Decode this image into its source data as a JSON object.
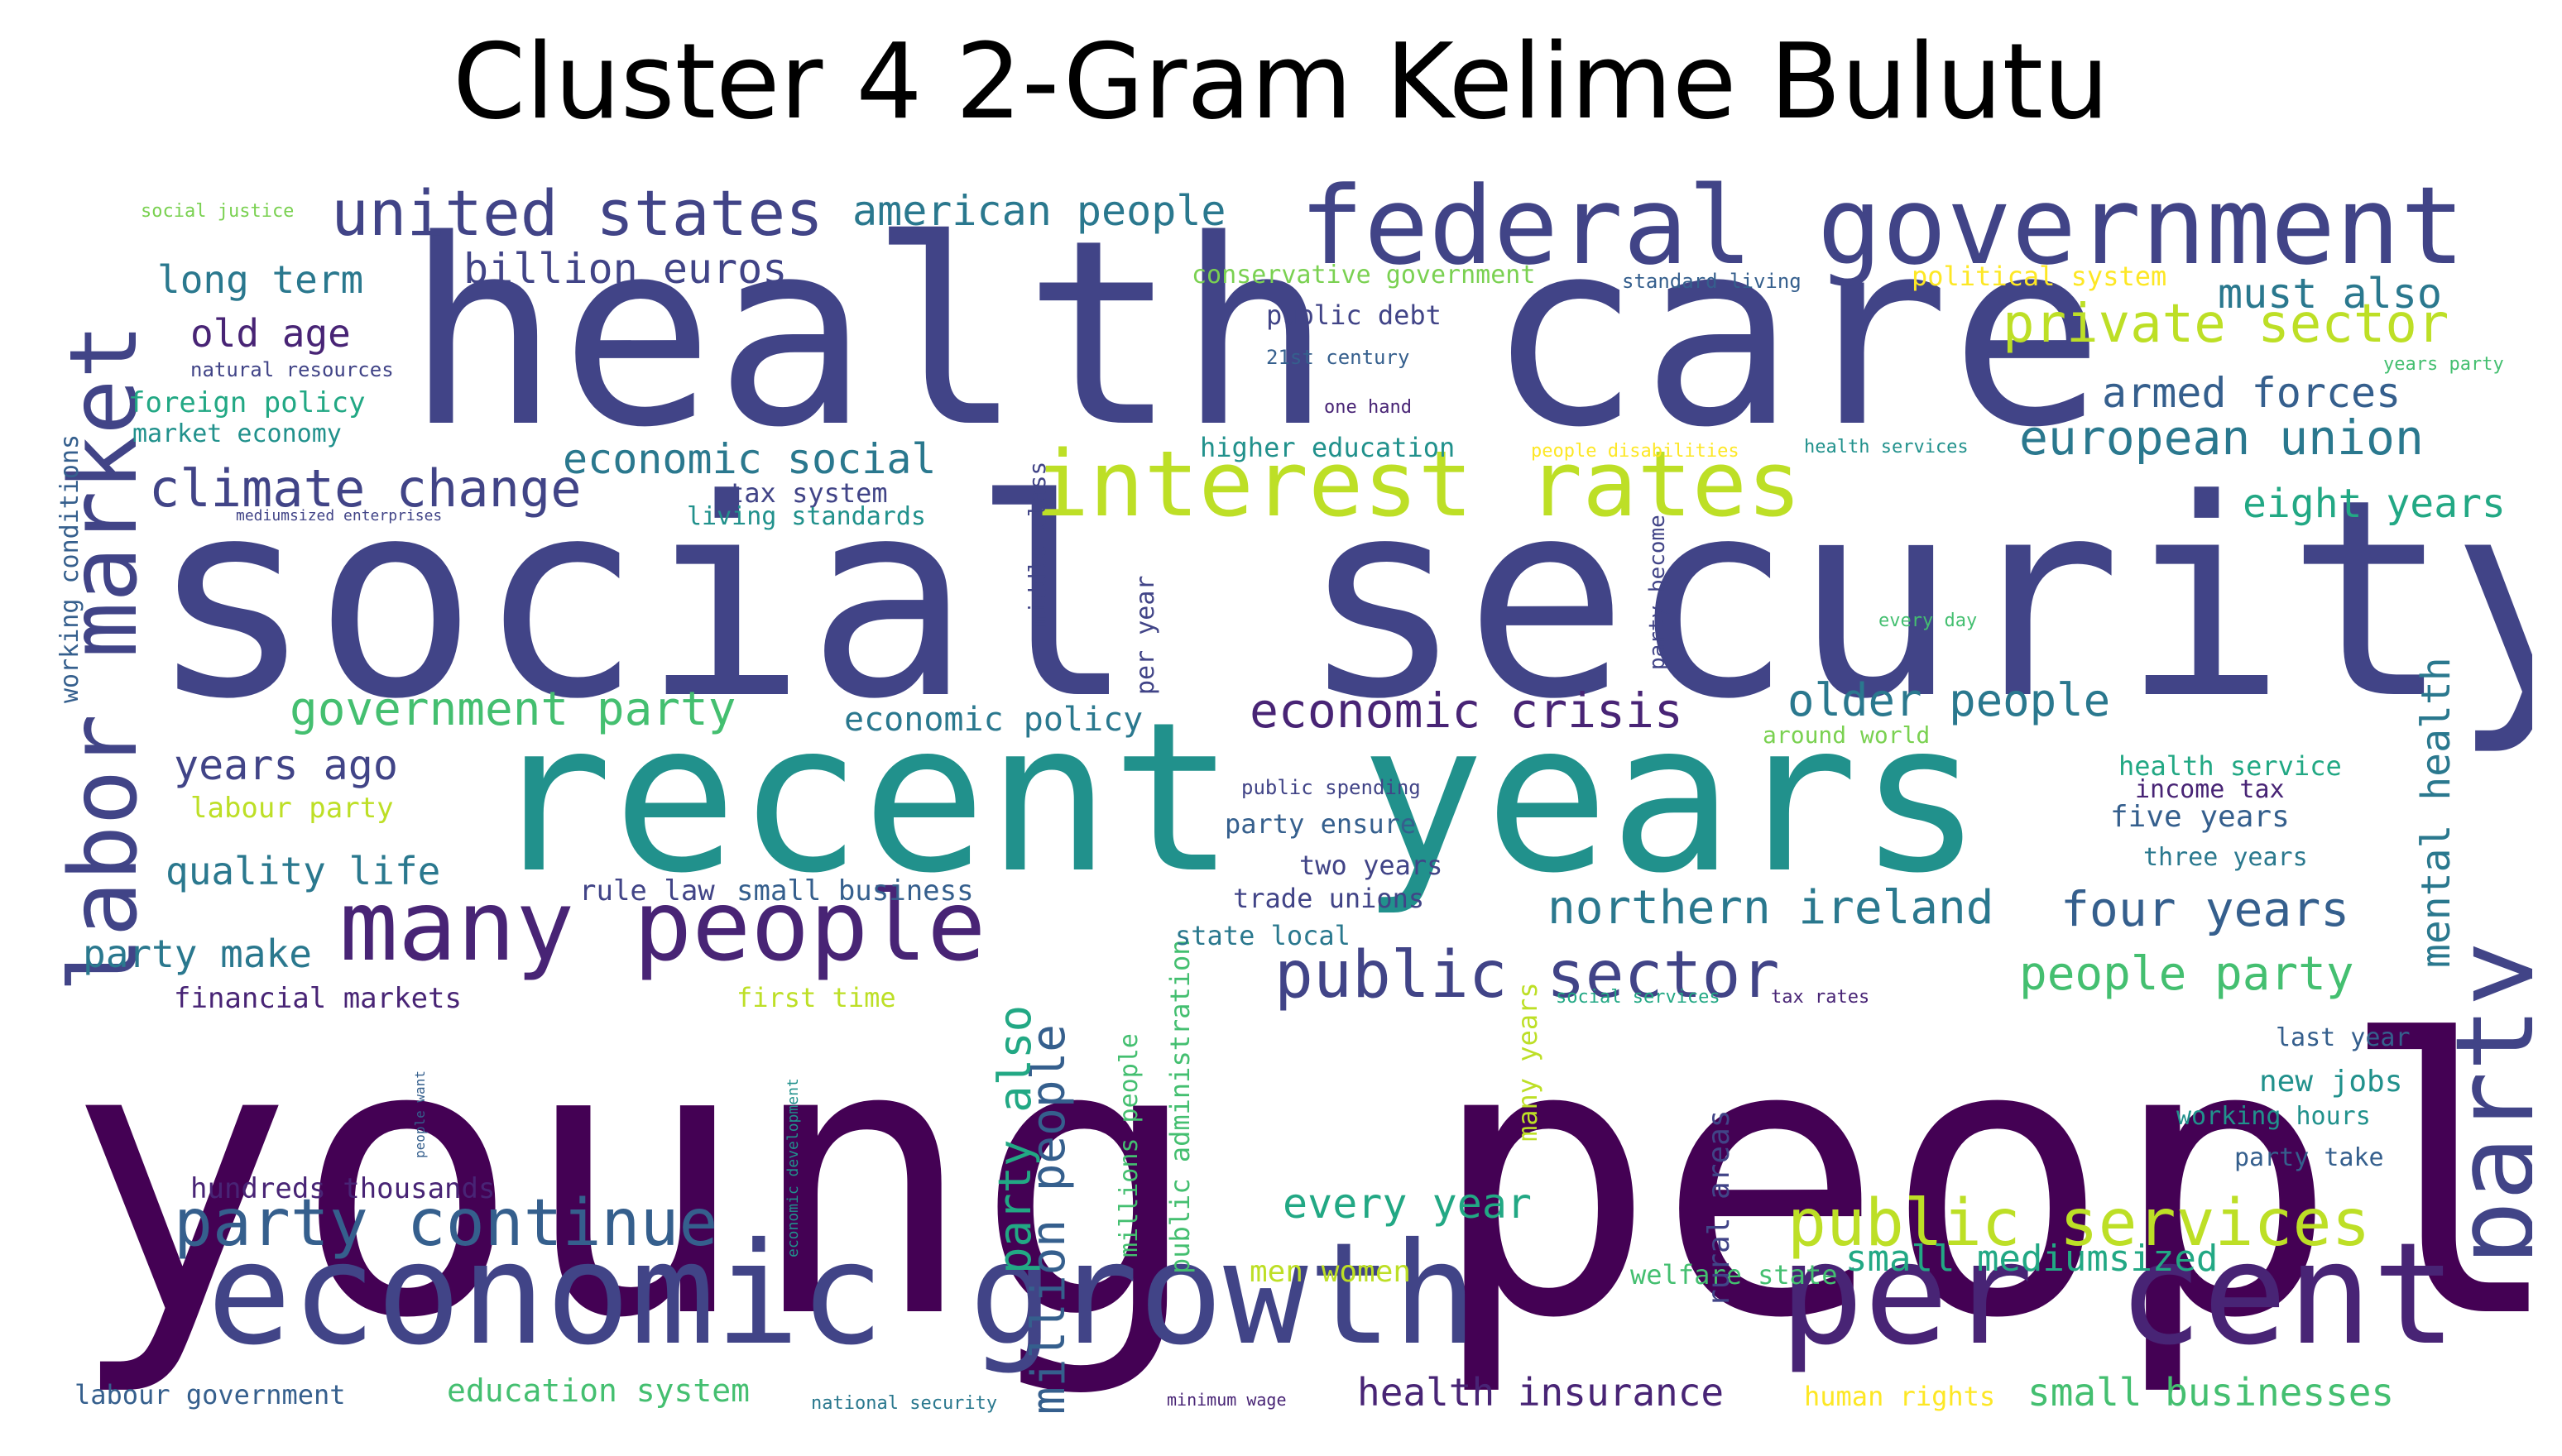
{
  "title": "Cluster 4 2-Gram Kelime Bulutu",
  "colors": {
    "c1": "#440154",
    "c2": "#482475",
    "c3": "#414487",
    "c4": "#355f8d",
    "c5": "#2a788e",
    "c6": "#21918c",
    "c7": "#22a884",
    "c8": "#44bf70",
    "c9": "#7ad151",
    "c10": "#bddf26",
    "c11": "#fde725"
  },
  "words": [
    {
      "text": "young people",
      "color": "c1"
    },
    {
      "text": "social security",
      "color": "c3"
    },
    {
      "text": "health care",
      "color": "c3"
    },
    {
      "text": "recent years",
      "color": "c6"
    },
    {
      "text": "economic growth",
      "color": "c3"
    },
    {
      "text": "per cent",
      "color": "c2"
    },
    {
      "text": "federal government",
      "color": "c3"
    },
    {
      "text": "many people",
      "color": "c2"
    },
    {
      "text": "interest rates",
      "color": "c10"
    },
    {
      "text": "labor market",
      "color": "c3"
    },
    {
      "text": "party",
      "color": "c3"
    },
    {
      "text": "united states",
      "color": "c3"
    },
    {
      "text": "party continue",
      "color": "c4"
    },
    {
      "text": "public sector",
      "color": "c3"
    },
    {
      "text": "public services",
      "color": "c10"
    },
    {
      "text": "climate change",
      "color": "c3"
    },
    {
      "text": "private sector",
      "color": "c10"
    },
    {
      "text": "european union",
      "color": "c5"
    },
    {
      "text": "economic crisis",
      "color": "c2"
    },
    {
      "text": "government party",
      "color": "c8"
    },
    {
      "text": "northern ireland",
      "color": "c5"
    },
    {
      "text": "four years",
      "color": "c4"
    },
    {
      "text": "american people",
      "color": "c5"
    },
    {
      "text": "older people",
      "color": "c5"
    },
    {
      "text": "armed forces",
      "color": "c4"
    },
    {
      "text": "must also",
      "color": "c5"
    },
    {
      "text": "eight years",
      "color": "c7"
    },
    {
      "text": "economic social",
      "color": "c5"
    },
    {
      "text": "billion euros",
      "color": "c3"
    },
    {
      "text": "long term",
      "color": "c5"
    },
    {
      "text": "old age",
      "color": "c2"
    },
    {
      "text": "years ago",
      "color": "c3"
    },
    {
      "text": "quality life",
      "color": "c5"
    },
    {
      "text": "party make",
      "color": "c5"
    },
    {
      "text": "every year",
      "color": "c7"
    },
    {
      "text": "health insurance",
      "color": "c2"
    },
    {
      "text": "small businesses",
      "color": "c8"
    },
    {
      "text": "small mediumsized",
      "color": "c7"
    },
    {
      "text": "people party",
      "color": "c8"
    },
    {
      "text": "mental health",
      "color": "c5"
    },
    {
      "text": "million people",
      "color": "c4"
    },
    {
      "text": "party also",
      "color": "c7"
    },
    {
      "text": "economic policy",
      "color": "c5"
    },
    {
      "text": "labour party",
      "color": "c10"
    },
    {
      "text": "rule law",
      "color": "c3"
    },
    {
      "text": "small business",
      "color": "c4"
    },
    {
      "text": "financial markets",
      "color": "c2"
    },
    {
      "text": "hundreds thousands",
      "color": "c2"
    },
    {
      "text": "labour government",
      "color": "c4"
    },
    {
      "text": "education system",
      "color": "c8"
    },
    {
      "text": "men women",
      "color": "c10"
    },
    {
      "text": "welfare state",
      "color": "c8"
    },
    {
      "text": "human rights",
      "color": "c11"
    },
    {
      "text": "rural areas",
      "color": "c3"
    },
    {
      "text": "many years",
      "color": "c10"
    },
    {
      "text": "millions people",
      "color": "c8"
    },
    {
      "text": "public administration",
      "color": "c8"
    },
    {
      "text": "first time",
      "color": "c10"
    },
    {
      "text": "state local",
      "color": "c5"
    },
    {
      "text": "trade unions",
      "color": "c3"
    },
    {
      "text": "two years",
      "color": "c3"
    },
    {
      "text": "party ensure",
      "color": "c4"
    },
    {
      "text": "public spending",
      "color": "c3"
    },
    {
      "text": "health service",
      "color": "c7"
    },
    {
      "text": "income tax",
      "color": "c2"
    },
    {
      "text": "five years",
      "color": "c4"
    },
    {
      "text": "three years",
      "color": "c5"
    },
    {
      "text": "last year",
      "color": "c4"
    },
    {
      "text": "new jobs",
      "color": "c6"
    },
    {
      "text": "working hours",
      "color": "c6"
    },
    {
      "text": "party take",
      "color": "c4"
    },
    {
      "text": "conservative government",
      "color": "c9"
    },
    {
      "text": "standard living",
      "color": "c4"
    },
    {
      "text": "political system",
      "color": "c11"
    },
    {
      "text": "public debt",
      "color": "c3"
    },
    {
      "text": "21st century",
      "color": "c4"
    },
    {
      "text": "one hand",
      "color": "c2"
    },
    {
      "text": "higher education",
      "color": "c6"
    },
    {
      "text": "people disabilities",
      "color": "c11"
    },
    {
      "text": "health services",
      "color": "c6"
    },
    {
      "text": "tax system",
      "color": "c3"
    },
    {
      "text": "living standards",
      "color": "c6"
    },
    {
      "text": "middle class",
      "color": "c3"
    },
    {
      "text": "per year",
      "color": "c3"
    },
    {
      "text": "party become",
      "color": "c3"
    },
    {
      "text": "every day",
      "color": "c8"
    },
    {
      "text": "around world",
      "color": "c9"
    },
    {
      "text": "social services",
      "color": "c7"
    },
    {
      "text": "tax rates",
      "color": "c2"
    },
    {
      "text": "years party",
      "color": "c8"
    },
    {
      "text": "social justice",
      "color": "c9"
    },
    {
      "text": "natural resources",
      "color": "c3"
    },
    {
      "text": "foreign policy",
      "color": "c7"
    },
    {
      "text": "market economy",
      "color": "c6"
    },
    {
      "text": "mediumsized enterprises",
      "color": "c3"
    },
    {
      "text": "working conditions",
      "color": "c4"
    },
    {
      "text": "people want",
      "color": "c4"
    },
    {
      "text": "economic development",
      "color": "c6"
    },
    {
      "text": "national security",
      "color": "c5"
    },
    {
      "text": "minimum wage",
      "color": "c2"
    }
  ]
}
